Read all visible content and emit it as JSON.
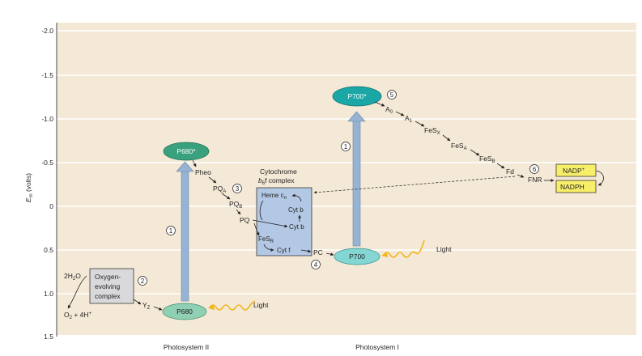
{
  "axis": {
    "ylabel": "E",
    "ylabel_sub": "m",
    "ylabel_unit": " (volts)",
    "ticks": [
      "-2.0",
      "-1.5",
      "-1.0",
      "-0.5",
      "0",
      "0.5",
      "1.0",
      "1.5"
    ],
    "xlabels": [
      "Photosystem II",
      "Photosystem I"
    ]
  },
  "colors": {
    "background": "#f4e9d6",
    "gridline": "#ffffff",
    "p680_star": "#3aa17e",
    "p680": "#8fd0b4",
    "p700_star": "#1aa7a6",
    "p700": "#84d6d3",
    "excitation_arrow": "#97b3d3",
    "cytochrome_box": "#b2c8e4",
    "nadp_box": "#f7ef6a",
    "light_wave": "#f2b51e"
  },
  "components": {
    "p680_star": "P680*",
    "p680": "P680",
    "p700_star": "P700*",
    "p700": "P700",
    "pheo": "Pheo",
    "pqa": "PQ",
    "pqa_sub": "A",
    "pqb": "PQ",
    "pqb_sub": "B",
    "pq": "PQ",
    "cyt_title_1": "Cytochrome",
    "cyt_title_2_a": "b",
    "cyt_title_2_sub": "6",
    "cyt_title_2_b": "f complex",
    "heme": "Heme c",
    "heme_sub": "n",
    "cyt_b_upper": "Cyt b",
    "cyt_b_lower": "Cyt b",
    "fesr": "FeS",
    "fesr_sub": "R",
    "cytf": "Cyt f",
    "pc": "PC",
    "a0": "A",
    "a0_sub": "0",
    "a1": "A",
    "a1_sub": "1",
    "fesx": "FeS",
    "fesx_sub": "X",
    "fesa": "FeS",
    "fesa_sub": "A",
    "fesb": "FeS",
    "fesb_sub": "B",
    "fd": "Fd",
    "fnr": "FNR",
    "nadp": "NADP",
    "nadp_sup": "+",
    "nadph": "NADPH",
    "water": "2H",
    "water_sub": "2",
    "water_end": "O",
    "oxygen": "O",
    "oxygen_sub": "2",
    "oxygen_end": " + 4H",
    "oxygen_sup": "+",
    "oec_1": "Oxygen-",
    "oec_2": "evolving",
    "oec_3": "complex",
    "yz": "Y",
    "yz_sub": "Z",
    "light_1": "Light",
    "light_2": "Light"
  },
  "steps": [
    "1",
    "1",
    "2",
    "3",
    "4",
    "5",
    "6"
  ]
}
